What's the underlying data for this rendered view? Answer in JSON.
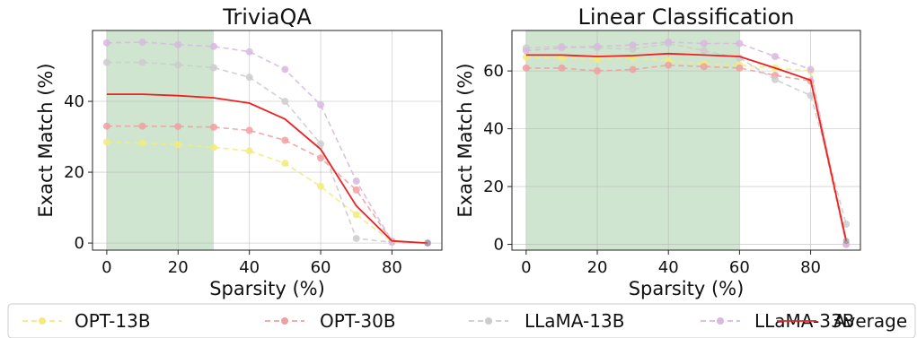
{
  "chart_data": [
    {
      "type": "line",
      "title": "TriviaQA",
      "xlabel": "Sparsity (%)",
      "ylabel": "Exact Match (%)",
      "xlim": [
        -4,
        94
      ],
      "ylim": [
        -2,
        60
      ],
      "xticks": [
        0,
        20,
        40,
        60,
        80
      ],
      "yticks": [
        0,
        20,
        40
      ],
      "grid": true,
      "highlight_band": {
        "x0": 0,
        "x1": 30,
        "color": "#cfe5cf"
      },
      "x": [
        0,
        10,
        20,
        30,
        40,
        50,
        60,
        70,
        80,
        90
      ],
      "series": [
        {
          "name": "OPT-13B",
          "color": "#f0ec80",
          "values": [
            28.5,
            28.2,
            27.8,
            27.0,
            26.0,
            22.5,
            16.0,
            8.0,
            0.3,
            0.0
          ]
        },
        {
          "name": "OPT-30B",
          "color": "#f0a0a0",
          "values": [
            33.0,
            33.0,
            32.9,
            32.7,
            31.8,
            29.0,
            24.0,
            15.0,
            0.5,
            0.0
          ]
        },
        {
          "name": "LLaMA-13B",
          "color": "#cccccc",
          "values": [
            51.0,
            51.0,
            50.3,
            49.5,
            46.8,
            40.0,
            28.0,
            1.3,
            0.2,
            0.0
          ]
        },
        {
          "name": "LLaMA-33B",
          "color": "#d8b8e0",
          "values": [
            56.5,
            56.7,
            56.0,
            55.5,
            54.0,
            49.0,
            39.0,
            17.5,
            0.5,
            0.0
          ]
        },
        {
          "name": "Average",
          "color": "#ee2020",
          "values": [
            42.0,
            42.0,
            41.6,
            41.0,
            39.5,
            35.0,
            26.5,
            10.5,
            0.6,
            0.0
          ]
        }
      ]
    },
    {
      "type": "line",
      "title": "Linear Classification",
      "xlabel": "Sparsity (%)",
      "ylabel": "Exact Match (%)",
      "xlim": [
        -4,
        94
      ],
      "ylim": [
        -2,
        74
      ],
      "xticks": [
        0,
        20,
        40,
        60,
        80
      ],
      "yticks": [
        0,
        20,
        40,
        60
      ],
      "grid": true,
      "highlight_band": {
        "x0": 0,
        "x1": 60,
        "color": "#cfe5cf"
      },
      "x": [
        0,
        10,
        20,
        30,
        40,
        50,
        60,
        70,
        80,
        90
      ],
      "series": [
        {
          "name": "OPT-13B",
          "color": "#f0ec80",
          "values": [
            64.8,
            64.5,
            64.0,
            64.5,
            63.5,
            62.5,
            62.0,
            61.0,
            60.0,
            0.0
          ]
        },
        {
          "name": "OPT-30B",
          "color": "#f0a0a0",
          "values": [
            61.0,
            61.0,
            60.0,
            60.5,
            62.0,
            61.5,
            61.0,
            58.5,
            56.5,
            0.0
          ]
        },
        {
          "name": "LLaMA-13B",
          "color": "#cccccc",
          "values": [
            68.0,
            68.5,
            68.0,
            67.5,
            69.5,
            67.0,
            64.5,
            57.0,
            51.5,
            7.0
          ]
        },
        {
          "name": "LLaMA-33B",
          "color": "#d8b8e0",
          "values": [
            67.0,
            68.0,
            68.5,
            69.0,
            70.0,
            69.5,
            69.5,
            65.0,
            60.5,
            0.0
          ]
        },
        {
          "name": "Average",
          "color": "#ee2020",
          "values": [
            65.5,
            65.5,
            65.0,
            65.3,
            66.0,
            65.5,
            65.0,
            61.0,
            56.8,
            1.2
          ]
        }
      ]
    }
  ],
  "legend": {
    "placement": "bottom",
    "items": [
      {
        "label": "OPT-13B",
        "color": "#f0ec80",
        "style": "dashed-marker"
      },
      {
        "label": "OPT-30B",
        "color": "#f0a0a0",
        "style": "dashed-marker"
      },
      {
        "label": "LLaMA-13B",
        "color": "#cccccc",
        "style": "dashed-marker"
      },
      {
        "label": "LLaMA-33B",
        "color": "#d8b8e0",
        "style": "dashed-marker"
      },
      {
        "label": "Average",
        "color": "#ee2020",
        "style": "solid"
      }
    ]
  }
}
